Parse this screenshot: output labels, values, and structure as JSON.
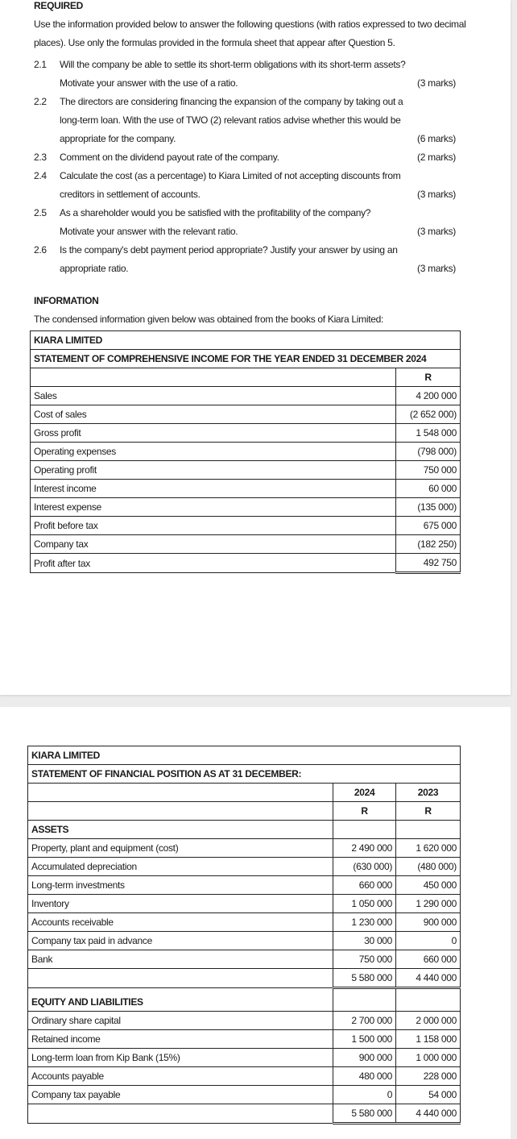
{
  "required": {
    "heading": "REQUIRED",
    "intro_line1": "Use the information provided below to answer the following questions (with ratios expressed to two decimal",
    "intro_line2": "places).  Use only the formulas provided in the formula sheet that appear after Question 5.",
    "questions": [
      {
        "num": "2.1",
        "text": "Will the company be able to settle its short-term obligations with its short-term assets? Motivate your answer with the use of a ratio.",
        "marks": "(3 marks)"
      },
      {
        "num": "2.2",
        "text": "The directors are considering financing the expansion of the company by taking out a long-term loan.  With the use of TWO (2) relevant ratios advise whether this would be appropriate for the company.",
        "marks": "(6 marks)"
      },
      {
        "num": "2.3",
        "text": "Comment on the dividend payout rate of the company.",
        "marks": "(2 marks)"
      },
      {
        "num": "2.4",
        "text": "Calculate the cost (as a percentage) to Kiara Limited of not accepting discounts from creditors in settlement of accounts.",
        "marks": "(3 marks)"
      },
      {
        "num": "2.5",
        "text": "As a shareholder would you be satisfied with the profitability of the company?  Motivate your answer with the relevant ratio.",
        "marks": "(3 marks)"
      },
      {
        "num": "2.6",
        "text": "Is the company's debt payment period appropriate?  Justify your answer by using an appropriate ratio.",
        "marks": "(3 marks)"
      }
    ]
  },
  "information": {
    "heading": "INFORMATION",
    "intro": "The condensed information given below was obtained from the books of Kiara Limited:"
  },
  "income_statement": {
    "company": "KIARA LIMITED",
    "title": "STATEMENT OF COMPREHENSIVE INCOME FOR THE YEAR ENDED 31 DECEMBER 2024",
    "currency": "R",
    "rows": [
      {
        "label": "Sales",
        "value": "4 200 000"
      },
      {
        "label": "Cost of sales",
        "value": "(2 652 000)"
      },
      {
        "label": "Gross profit",
        "value": "1 548 000"
      },
      {
        "label": "Operating expenses",
        "value": "(798 000)"
      },
      {
        "label": "Operating profit",
        "value": "750 000"
      },
      {
        "label": "Interest income",
        "value": "60 000"
      },
      {
        "label": "Interest expense",
        "value": "(135 000)"
      },
      {
        "label": "Profit before tax",
        "value": "675 000"
      },
      {
        "label": "Company tax",
        "value": "(182 250)"
      },
      {
        "label": "Profit after tax",
        "value": "492 750"
      }
    ]
  },
  "balance_sheet": {
    "company": "KIARA LIMITED",
    "title": "STATEMENT OF FINANCIAL POSITION AS AT 31 DECEMBER:",
    "years": [
      "2024",
      "2023"
    ],
    "currency": [
      "R",
      "R"
    ],
    "assets_heading": "ASSETS",
    "assets": [
      {
        "label": "Property, plant and equipment (cost)",
        "y2024": "2 490 000",
        "y2023": "1 620 000"
      },
      {
        "label": "Accumulated depreciation",
        "y2024": "(630 000)",
        "y2023": "(480 000)"
      },
      {
        "label": "Long-term investments",
        "y2024": "660 000",
        "y2023": "450 000"
      },
      {
        "label": "Inventory",
        "y2024": "1 050 000",
        "y2023": "1 290 000"
      },
      {
        "label": "Accounts receivable",
        "y2024": "1 230 000",
        "y2023": "900 000"
      },
      {
        "label": "Company tax paid in advance",
        "y2024": "30 000",
        "y2023": "0"
      },
      {
        "label": "Bank",
        "y2024": "750 000",
        "y2023": "660 000"
      }
    ],
    "assets_total": {
      "y2024": "5 580 000",
      "y2023": "4 440 000"
    },
    "equity_heading": "EQUITY AND LIABILITIES",
    "equity": [
      {
        "label": "Ordinary share capital",
        "y2024": "2 700 000",
        "y2023": "2 000 000"
      },
      {
        "label": "Retained income",
        "y2024": "1 500 000",
        "y2023": "1 158 000"
      },
      {
        "label": "Long-term loan from Kip Bank (15%)",
        "y2024": "900 000",
        "y2023": "1 000 000"
      },
      {
        "label": "Accounts payable",
        "y2024": "480 000",
        "y2023": "228 000"
      },
      {
        "label": "Company tax payable",
        "y2024": "0",
        "y2023": "54 000"
      }
    ],
    "equity_total": {
      "y2024": "5 580 000",
      "y2023": "4 440 000"
    }
  }
}
